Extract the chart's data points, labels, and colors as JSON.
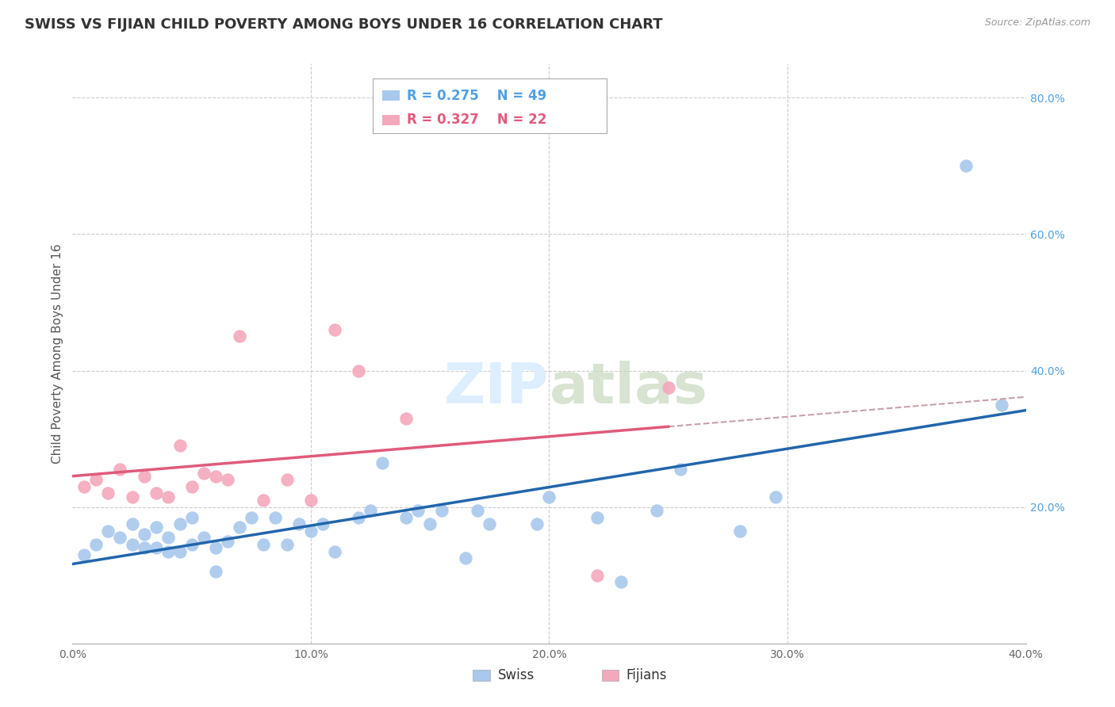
{
  "title": "SWISS VS FIJIAN CHILD POVERTY AMONG BOYS UNDER 16 CORRELATION CHART",
  "source": "Source: ZipAtlas.com",
  "ylabel": "Child Poverty Among Boys Under 16",
  "xlim": [
    0.0,
    0.4
  ],
  "ylim": [
    0.0,
    0.85
  ],
  "xticks": [
    0.0,
    0.1,
    0.2,
    0.3,
    0.4
  ],
  "xtick_labels": [
    "0.0%",
    "10.0%",
    "20.0%",
    "30.0%",
    "40.0%"
  ],
  "ytick_labels_right": [
    "20.0%",
    "40.0%",
    "60.0%",
    "80.0%"
  ],
  "right_yticks": [
    0.2,
    0.4,
    0.6,
    0.8
  ],
  "swiss_R": 0.275,
  "swiss_N": 49,
  "fijian_R": 0.327,
  "fijian_N": 22,
  "swiss_color": "#a8c8ed",
  "fijian_color": "#f4a8bc",
  "swiss_line_color": "#2166ac",
  "fijian_line_color": "#e05a7a",
  "fijian_dashed_color": "#c8a0a8",
  "background_color": "#ffffff",
  "grid_color": "#cccccc",
  "watermark_color": "#ddeeff",
  "title_fontsize": 13,
  "axis_label_fontsize": 11,
  "tick_fontsize": 10,
  "legend_fontsize": 12,
  "swiss_x": [
    0.005,
    0.01,
    0.015,
    0.02,
    0.025,
    0.025,
    0.03,
    0.03,
    0.035,
    0.035,
    0.04,
    0.04,
    0.045,
    0.045,
    0.05,
    0.05,
    0.055,
    0.06,
    0.06,
    0.065,
    0.07,
    0.075,
    0.08,
    0.085,
    0.09,
    0.095,
    0.1,
    0.105,
    0.11,
    0.12,
    0.125,
    0.13,
    0.14,
    0.145,
    0.15,
    0.155,
    0.165,
    0.17,
    0.175,
    0.195,
    0.2,
    0.22,
    0.23,
    0.245,
    0.255,
    0.28,
    0.295,
    0.375,
    0.39
  ],
  "swiss_y": [
    0.13,
    0.145,
    0.165,
    0.155,
    0.145,
    0.175,
    0.14,
    0.16,
    0.14,
    0.17,
    0.135,
    0.155,
    0.135,
    0.175,
    0.145,
    0.185,
    0.155,
    0.105,
    0.14,
    0.15,
    0.17,
    0.185,
    0.145,
    0.185,
    0.145,
    0.175,
    0.165,
    0.175,
    0.135,
    0.185,
    0.195,
    0.265,
    0.185,
    0.195,
    0.175,
    0.195,
    0.125,
    0.195,
    0.175,
    0.175,
    0.215,
    0.185,
    0.09,
    0.195,
    0.255,
    0.165,
    0.215,
    0.7,
    0.35
  ],
  "fijian_x": [
    0.005,
    0.01,
    0.015,
    0.02,
    0.025,
    0.03,
    0.035,
    0.04,
    0.045,
    0.05,
    0.055,
    0.06,
    0.065,
    0.07,
    0.08,
    0.09,
    0.1,
    0.11,
    0.12,
    0.14,
    0.22,
    0.25
  ],
  "fijian_y": [
    0.23,
    0.24,
    0.22,
    0.255,
    0.215,
    0.245,
    0.22,
    0.215,
    0.29,
    0.23,
    0.25,
    0.245,
    0.24,
    0.45,
    0.21,
    0.24,
    0.21,
    0.46,
    0.4,
    0.33,
    0.1,
    0.375
  ]
}
